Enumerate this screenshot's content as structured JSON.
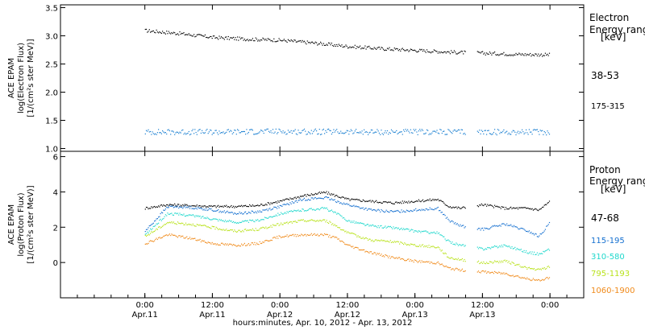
{
  "chart_data": [
    {
      "type": "scatter",
      "panel": "electron",
      "ylabel_lines": [
        "ACE EPAM",
        "log(Electron Flux)",
        "[1/(cm²s ster MeV)]"
      ],
      "ylim": [
        0.95,
        3.55
      ],
      "yticks": [
        1.0,
        1.5,
        2.0,
        2.5,
        3.0,
        3.5
      ],
      "ytick_labels": [
        "1.0",
        "1.5",
        "2.0",
        "2.5",
        "3.0",
        "3.5"
      ],
      "legend_title_lines": [
        "Electron",
        "Energy range",
        "[keV]"
      ],
      "series": [
        {
          "name": "38-53",
          "color": "#000000",
          "x": [
            0,
            6,
            12,
            18,
            24,
            30,
            36,
            42,
            48,
            54,
            60,
            66,
            72
          ],
          "y": [
            3.1,
            3.05,
            2.98,
            2.95,
            2.93,
            2.88,
            2.82,
            2.78,
            2.75,
            2.72,
            2.7,
            2.68,
            2.67
          ]
        },
        {
          "name": "175-315",
          "color": "#1a7fd1",
          "x": [
            0,
            12,
            24,
            36,
            48,
            60,
            72
          ],
          "y": [
            1.3,
            1.3,
            1.31,
            1.3,
            1.3,
            1.3,
            1.3
          ]
        }
      ]
    },
    {
      "type": "scatter",
      "panel": "proton",
      "ylabel_lines": [
        "ACE EPAM",
        "log(Proton Flux)",
        "[1/(cm²s ster MeV)]"
      ],
      "ylim": [
        -2.0,
        6.3
      ],
      "yticks": [
        -2,
        0,
        2,
        4,
        6
      ],
      "ytick_labels": [
        "",
        "0",
        "2",
        "4",
        "6"
      ],
      "legend_title_lines": [
        "Proton",
        "Energy range",
        "[keV]"
      ],
      "series": [
        {
          "name": "47-68",
          "color": "#000000",
          "x": [
            0,
            4,
            8,
            12,
            16,
            20,
            24,
            28,
            32,
            34,
            36,
            40,
            44,
            48,
            52,
            54,
            56,
            60,
            64,
            68,
            70,
            72
          ],
          "y": [
            3.1,
            3.3,
            3.25,
            3.2,
            3.2,
            3.25,
            3.5,
            3.8,
            4.0,
            3.8,
            3.6,
            3.5,
            3.4,
            3.5,
            3.6,
            3.2,
            3.1,
            3.3,
            3.1,
            3.1,
            3.0,
            3.5
          ]
        },
        {
          "name": "115-195",
          "color": "#1570d0",
          "x": [
            0,
            4,
            8,
            12,
            16,
            20,
            24,
            28,
            32,
            34,
            36,
            40,
            44,
            48,
            52,
            54,
            56,
            60,
            64,
            68,
            70,
            72
          ],
          "y": [
            1.8,
            3.2,
            3.15,
            3.0,
            2.8,
            2.9,
            3.2,
            3.6,
            3.7,
            3.5,
            3.3,
            3.0,
            2.9,
            3.0,
            3.1,
            2.4,
            2.1,
            1.9,
            2.2,
            1.8,
            1.5,
            2.3
          ]
        },
        {
          "name": "310-580",
          "color": "#1fd8cc",
          "x": [
            0,
            4,
            8,
            12,
            16,
            20,
            24,
            28,
            32,
            34,
            36,
            40,
            44,
            48,
            52,
            54,
            56,
            60,
            64,
            68,
            70,
            72
          ],
          "y": [
            1.6,
            2.8,
            2.7,
            2.5,
            2.3,
            2.4,
            2.8,
            3.0,
            3.1,
            2.8,
            2.4,
            2.1,
            2.0,
            1.8,
            1.7,
            1.2,
            1.0,
            0.8,
            1.0,
            0.6,
            0.5,
            0.8
          ]
        },
        {
          "name": "795-1193",
          "color": "#b8e21a",
          "x": [
            0,
            4,
            8,
            12,
            16,
            20,
            24,
            28,
            32,
            34,
            36,
            40,
            44,
            48,
            52,
            54,
            56,
            60,
            64,
            68,
            70,
            72
          ],
          "y": [
            1.5,
            2.3,
            2.2,
            2.0,
            1.8,
            1.9,
            2.2,
            2.4,
            2.4,
            2.1,
            1.7,
            1.3,
            1.2,
            1.0,
            0.9,
            0.3,
            0.2,
            0.0,
            0.1,
            -0.3,
            -0.4,
            -0.2
          ]
        },
        {
          "name": "1060-1900",
          "color": "#f08a1a",
          "x": [
            0,
            4,
            8,
            12,
            16,
            20,
            24,
            28,
            32,
            34,
            36,
            40,
            44,
            48,
            52,
            54,
            56,
            60,
            64,
            68,
            70,
            72
          ],
          "y": [
            1.1,
            1.6,
            1.4,
            1.1,
            1.0,
            1.1,
            1.5,
            1.6,
            1.6,
            1.4,
            1.0,
            0.6,
            0.3,
            0.1,
            0.0,
            -0.3,
            -0.4,
            -0.5,
            -0.6,
            -0.9,
            -1.0,
            -0.8
          ]
        }
      ]
    }
  ],
  "x_axis": {
    "range": [
      -15,
      78
    ],
    "ticks": [
      0,
      12,
      24,
      36,
      48,
      60,
      72
    ],
    "tick_time_labels": [
      "0:00",
      "12:00",
      "0:00",
      "12:00",
      "0:00",
      "12:00",
      "0:00"
    ],
    "tick_date_labels": [
      "Apr.11",
      "Apr.11",
      "Apr.12",
      "Apr.12",
      "Apr.13",
      "Apr.13",
      ""
    ],
    "xlabel": "hours:minutes, Apr. 10, 2012 - Apr. 13, 2012",
    "data_gap": [
      57,
      59
    ]
  }
}
